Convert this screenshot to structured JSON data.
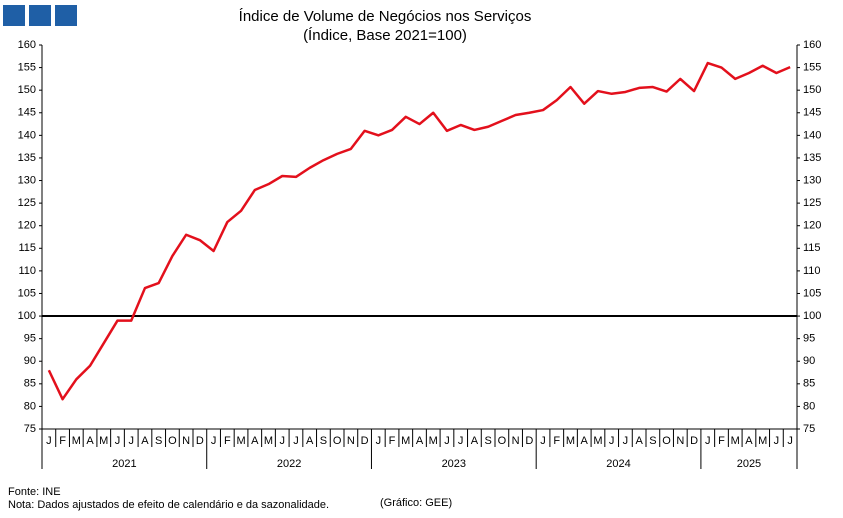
{
  "chart_data": {
    "type": "line",
    "title": "Índice de Volume de Negócios nos Serviços",
    "subtitle": "(Índice, Base 2021=100)",
    "categories": [
      "J",
      "F",
      "M",
      "A",
      "M",
      "J",
      "J",
      "A",
      "S",
      "O",
      "N",
      "D",
      "J",
      "F",
      "M",
      "A",
      "M",
      "J",
      "J",
      "A",
      "S",
      "O",
      "N",
      "D",
      "J",
      "F",
      "M",
      "A",
      "M",
      "J",
      "J",
      "A",
      "S",
      "O",
      "N",
      "D",
      "J",
      "F",
      "M",
      "A",
      "M",
      "J",
      "J",
      "A",
      "S",
      "O",
      "N",
      "D",
      "J",
      "F",
      "M",
      "A",
      "M",
      "J",
      "J"
    ],
    "years": [
      "2021",
      "2022",
      "2023",
      "2024",
      "2025"
    ],
    "series": [
      {
        "color": "#e3101c",
        "values": [
          88,
          81.6,
          86,
          89,
          94,
          99,
          99,
          106.2,
          107.3,
          113.3,
          118,
          116.8,
          114.4,
          120.8,
          123.3,
          127.9,
          129.2,
          131,
          130.8,
          132.8,
          134.5,
          135.9,
          137,
          141,
          140,
          141.2,
          144.1,
          142.5,
          145,
          141,
          142.3,
          141.2,
          141.9,
          143.2,
          144.5,
          145,
          145.6,
          147.8,
          150.7,
          147,
          149.8,
          149.2,
          149.6,
          150.5,
          150.7,
          149.7,
          152.5,
          149.8,
          156,
          155,
          152.5,
          153.8,
          155.4,
          153.8,
          155.1
        ]
      }
    ],
    "reference_line": 100,
    "ylim": [
      75,
      160
    ],
    "yticks": [
      75,
      80,
      85,
      90,
      95,
      100,
      105,
      110,
      115,
      120,
      125,
      130,
      135,
      140,
      145,
      150,
      155,
      160
    ],
    "source": "Fonte: INE",
    "note": "Nota: Dados ajustados de efeito de calendário e da sazonalidade.",
    "credit": "(Gráfico: GEE)"
  }
}
